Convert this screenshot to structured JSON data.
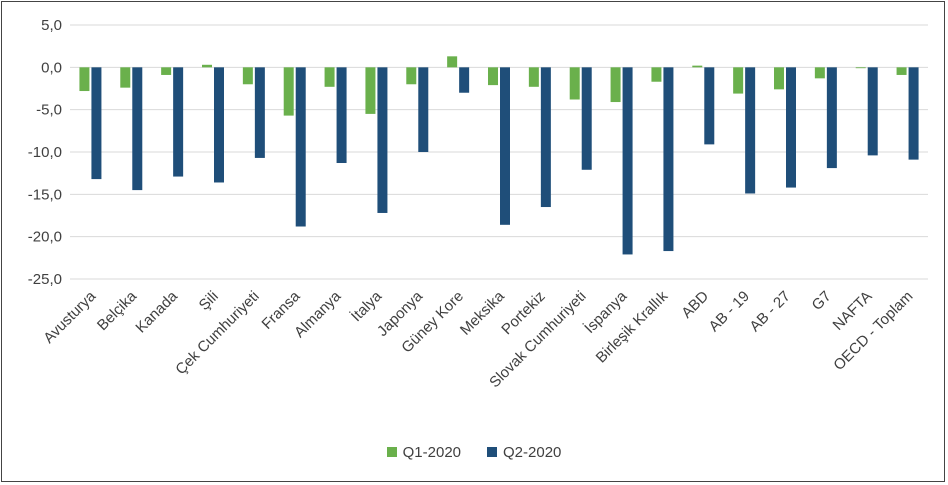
{
  "chart_data": {
    "type": "bar",
    "title": "",
    "xlabel": "",
    "ylabel": "",
    "ylim": [
      -25,
      5
    ],
    "yticks": [
      5,
      0,
      -5,
      -10,
      -15,
      -20,
      -25
    ],
    "ytick_labels": [
      "5,0",
      "0,0",
      "-5,0",
      "-10,0",
      "-15,0",
      "-20,0",
      "-25,0"
    ],
    "grid": true,
    "legend_position": "bottom",
    "categories": [
      "Avusturya",
      "Belçika",
      "Kanada",
      "Şili",
      "Çek Cumhuriyeti",
      "Fransa",
      "Almanya",
      "İtalya",
      "Japonya",
      "Güney Kore",
      "Meksika",
      "Portekiz",
      "Slovak Cumhuriyeti",
      "İspanya",
      "Birleşik Krallık",
      "ABD",
      "AB - 19",
      "AB - 27",
      "G7",
      "NAFTA",
      "OECD - Toplam"
    ],
    "series": [
      {
        "name": "Q1-2020",
        "color": "#6ab04c",
        "values": [
          -2.8,
          -2.4,
          -0.9,
          0.3,
          -2.0,
          -5.7,
          -2.3,
          -5.5,
          -2.0,
          1.3,
          -2.1,
          -2.3,
          -3.8,
          -4.1,
          -1.7,
          0.2,
          -3.1,
          -2.6,
          -1.3,
          -0.1,
          -0.9
        ]
      },
      {
        "name": "Q2-2020",
        "color": "#1f4e79",
        "values": [
          -13.2,
          -14.5,
          -12.9,
          -13.6,
          -10.7,
          -18.8,
          -11.3,
          -17.2,
          -10.0,
          -3.0,
          -18.6,
          -16.5,
          -12.1,
          -22.1,
          -21.7,
          -9.1,
          -14.9,
          -14.2,
          -11.9,
          -10.4,
          -10.9
        ]
      }
    ]
  }
}
